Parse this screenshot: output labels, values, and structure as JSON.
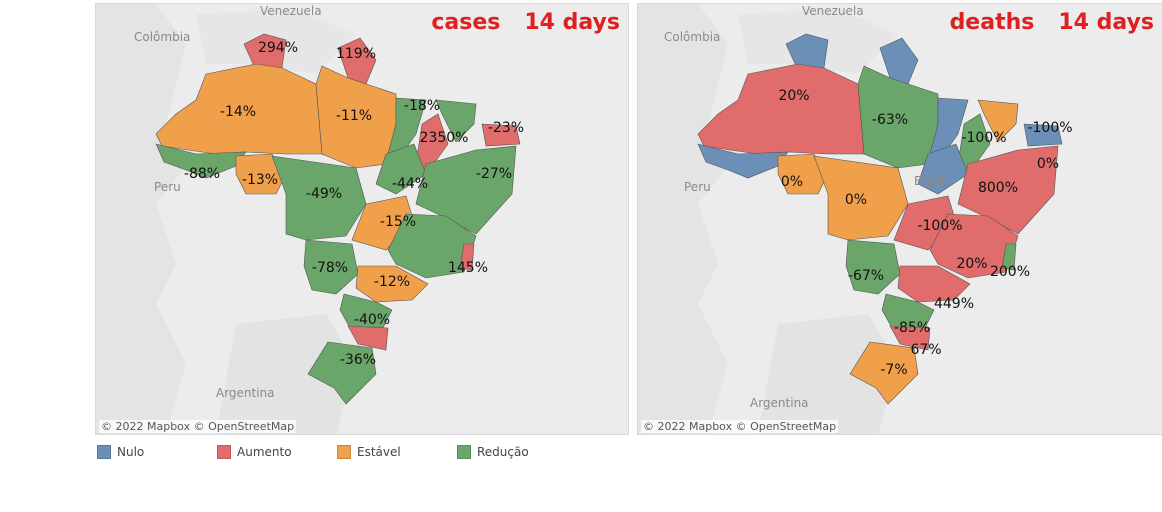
{
  "colors": {
    "nulo": "#6b8fb6",
    "aumento": "#e06c6c",
    "estavel": "#f0a04b",
    "reducao": "#6aa66a"
  },
  "cases_panel": {
    "title_metric": "cases",
    "title_period": "14 days",
    "countries": [
      "Venezuela",
      "Colômbia",
      "Peru",
      "Argentina"
    ],
    "attribution": "© 2022 Mapbox  © OpenStreetMap",
    "labels": [
      "294%",
      "119%",
      "-14%",
      "-11%",
      "-18%",
      "2350%",
      "-23%",
      "-88%",
      "-13%",
      "-49%",
      "-44%",
      "-27%",
      "-15%",
      "-78%",
      "145%",
      "-12%",
      "-40%",
      "-36%"
    ]
  },
  "deaths_panel": {
    "title_metric": "deaths",
    "title_period": "14 days",
    "countries": [
      "Venezuela",
      "Colômbia",
      "Peru",
      "Argentina",
      "Brazil"
    ],
    "attribution": "© 2022 Mapbox  © OpenStreetMap",
    "labels": [
      "20%",
      "-63%",
      "-100%",
      "-100%",
      "0%",
      "0%",
      "0%",
      "800%",
      "-100%",
      "-67%",
      "20%",
      "200%",
      "449%",
      "-85%",
      "67%",
      "-7%"
    ]
  },
  "legend": [
    {
      "label": "Nulo",
      "color": "#6b8fb6"
    },
    {
      "label": "Aumento",
      "color": "#e06c6c"
    },
    {
      "label": "Estável",
      "color": "#f0a04b"
    },
    {
      "label": "Redução",
      "color": "#6aa66a"
    }
  ]
}
